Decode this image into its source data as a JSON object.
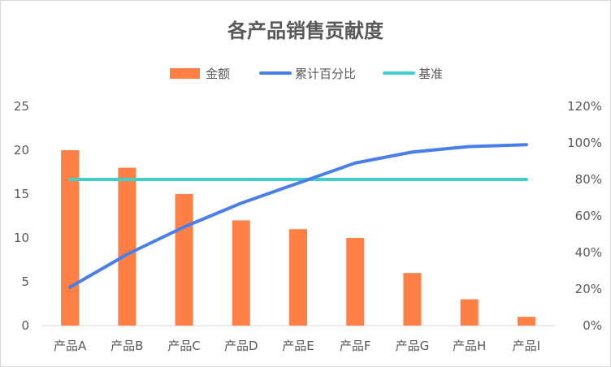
{
  "chart_data": {
    "type": "bar",
    "title": "各产品销售贡献度",
    "categories": [
      "产品A",
      "产品B",
      "产品C",
      "产品D",
      "产品E",
      "产品F",
      "产品G",
      "产品H",
      "产品I"
    ],
    "series": [
      {
        "name": "金额",
        "type": "bar",
        "axis": "left",
        "color": "#ff7f45",
        "values": [
          20,
          18,
          15,
          12,
          11,
          10,
          6,
          3,
          1
        ]
      },
      {
        "name": "累计百分比",
        "type": "line",
        "axis": "right",
        "color": "#4a7ee8",
        "values": [
          0.21,
          0.39,
          0.54,
          0.67,
          0.78,
          0.89,
          0.95,
          0.98,
          0.99
        ]
      },
      {
        "name": "基准",
        "type": "line",
        "axis": "right",
        "color": "#3fd0c9",
        "values": [
          0.8,
          0.8,
          0.8,
          0.8,
          0.8,
          0.8,
          0.8,
          0.8,
          0.8
        ]
      }
    ],
    "y_left": {
      "min": 0,
      "max": 25,
      "ticks": [
        "0",
        "5",
        "10",
        "15",
        "20",
        "25"
      ]
    },
    "y_right": {
      "min": 0,
      "max": 1.2,
      "ticks": [
        "0%",
        "20%",
        "40%",
        "60%",
        "80%",
        "100%",
        "120%"
      ]
    },
    "legend_position": "top",
    "grid": false
  }
}
